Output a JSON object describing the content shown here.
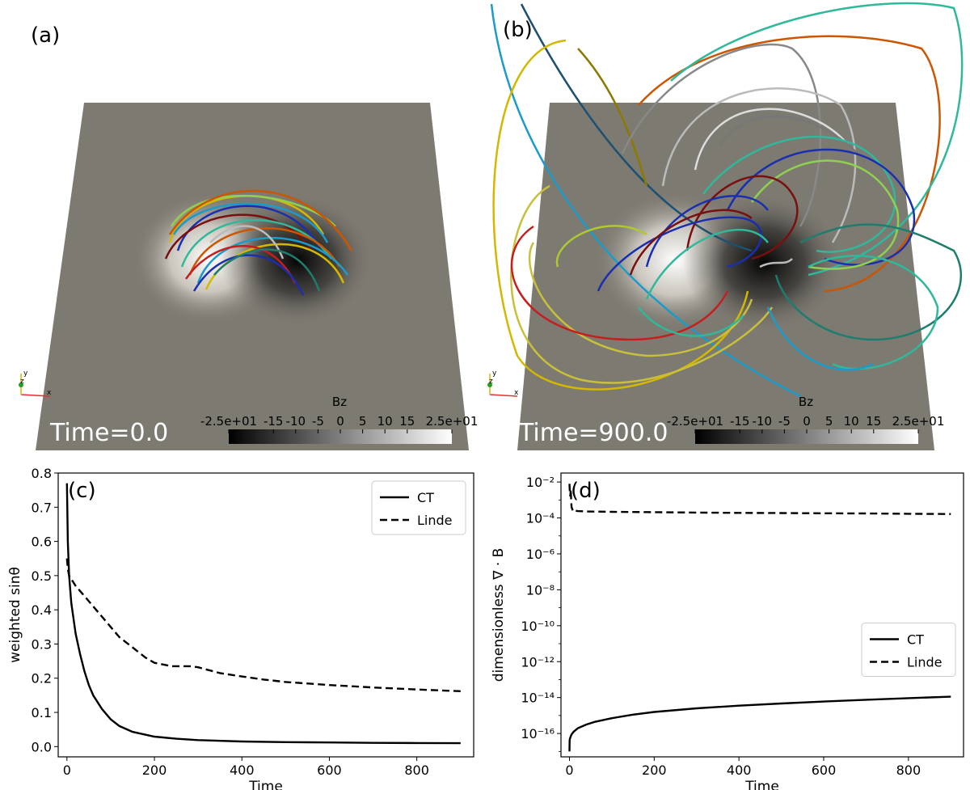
{
  "panels": {
    "a": {
      "label": "(a)",
      "time_text": "Time=0.0"
    },
    "b": {
      "label": "(b)",
      "time_text": "Time=900.0"
    },
    "c": {
      "label": "(c)"
    },
    "d": {
      "label": "(d)"
    }
  },
  "colorbar": {
    "title": "Bz",
    "range": [
      -25,
      25
    ],
    "ticks": [
      {
        "v": -25,
        "t": "-2.5e+01"
      },
      {
        "v": -15,
        "t": "-15"
      },
      {
        "v": -10,
        "t": "-10"
      },
      {
        "v": -5,
        "t": "-5"
      },
      {
        "v": 0,
        "t": "0"
      },
      {
        "v": 5,
        "t": "5"
      },
      {
        "v": 10,
        "t": "10"
      },
      {
        "v": 15,
        "t": "15"
      },
      {
        "v": 25,
        "t": "2.5e+01"
      }
    ]
  },
  "axes_triad": {
    "x": "x",
    "y": "y",
    "z": "z"
  },
  "colors": {
    "fieldlines": [
      "#d4b800",
      "#1a9bc9",
      "#1a2fb0",
      "#7a0f0f",
      "#2fb89a",
      "#cc5500",
      "#bbbbbb",
      "#8fd14f",
      "#c41e1e",
      "#1e7d6e",
      "#777777"
    ],
    "plane": "#7d7a72"
  },
  "chart_data": [
    {
      "id": "c",
      "type": "line",
      "title": "",
      "xlabel": "Time",
      "ylabel": "weighted sinθ",
      "xlim": [
        -20,
        930
      ],
      "ylim": [
        -0.03,
        0.8
      ],
      "xticks": [
        0,
        200,
        400,
        600,
        800
      ],
      "yticks": [
        0.0,
        0.1,
        0.2,
        0.3,
        0.4,
        0.5,
        0.6,
        0.7,
        0.8
      ],
      "ytick_labels": [
        "0.0",
        "0.1",
        "0.2",
        "0.3",
        "0.4",
        "0.5",
        "0.6",
        "0.7",
        "0.8"
      ],
      "legend": "top-right",
      "series": [
        {
          "name": "CT",
          "style": "solid",
          "x": [
            0,
            2,
            5,
            10,
            20,
            30,
            40,
            50,
            60,
            80,
            100,
            120,
            150,
            200,
            250,
            300,
            400,
            500,
            600,
            700,
            800,
            900
          ],
          "y": [
            0.77,
            0.6,
            0.5,
            0.42,
            0.33,
            0.27,
            0.22,
            0.18,
            0.15,
            0.11,
            0.08,
            0.06,
            0.043,
            0.029,
            0.023,
            0.019,
            0.015,
            0.013,
            0.012,
            0.011,
            0.0105,
            0.01
          ]
        },
        {
          "name": "Linde",
          "style": "dashed",
          "x": [
            0,
            2,
            5,
            10,
            20,
            40,
            60,
            80,
            100,
            120,
            140,
            160,
            180,
            200,
            240,
            280,
            300,
            320,
            350,
            400,
            450,
            500,
            600,
            700,
            800,
            900
          ],
          "y": [
            0.55,
            0.52,
            0.5,
            0.49,
            0.47,
            0.44,
            0.41,
            0.38,
            0.35,
            0.32,
            0.3,
            0.28,
            0.26,
            0.245,
            0.235,
            0.235,
            0.232,
            0.225,
            0.215,
            0.205,
            0.196,
            0.189,
            0.18,
            0.173,
            0.167,
            0.162
          ]
        }
      ]
    },
    {
      "id": "d",
      "type": "line",
      "title": "",
      "xlabel": "Time",
      "ylabel": "dimensionless ∇ · B",
      "yscale": "log",
      "xlim": [
        -20,
        930
      ],
      "ylim_exp": [
        -17.3,
        -1.5
      ],
      "xticks": [
        0,
        200,
        400,
        600,
        800
      ],
      "yticks_exp": [
        -16,
        -14,
        -12,
        -10,
        -8,
        -6,
        -4,
        -2
      ],
      "ytick_labels": [
        "10⁻¹⁶",
        "10⁻¹⁴",
        "10⁻¹²",
        "10⁻¹⁰",
        "10⁻⁸",
        "10⁻⁶",
        "10⁻⁴",
        "10⁻²"
      ],
      "legend": "center-right",
      "series": [
        {
          "name": "CT",
          "style": "solid",
          "x": [
            0,
            0.5,
            1,
            3,
            5,
            10,
            20,
            40,
            60,
            100,
            150,
            200,
            300,
            400,
            500,
            600,
            700,
            800,
            900
          ],
          "y_exp": [
            -17.0,
            -16.4,
            -16.3,
            -16.15,
            -16.05,
            -15.9,
            -15.7,
            -15.5,
            -15.35,
            -15.15,
            -14.95,
            -14.8,
            -14.6,
            -14.45,
            -14.33,
            -14.22,
            -14.12,
            -14.03,
            -13.95
          ]
        },
        {
          "name": "Linde",
          "style": "dashed",
          "x": [
            0,
            1,
            2,
            3,
            4,
            5,
            8,
            10,
            15,
            20,
            40,
            100,
            200,
            300,
            400,
            500,
            600,
            700,
            800,
            900
          ],
          "y_exp": [
            -2.1,
            -2.6,
            -2.8,
            -2.4,
            -3.0,
            -3.4,
            -3.6,
            -3.55,
            -3.6,
            -3.62,
            -3.64,
            -3.66,
            -3.68,
            -3.7,
            -3.72,
            -3.73,
            -3.74,
            -3.75,
            -3.77,
            -3.78
          ]
        }
      ]
    }
  ]
}
